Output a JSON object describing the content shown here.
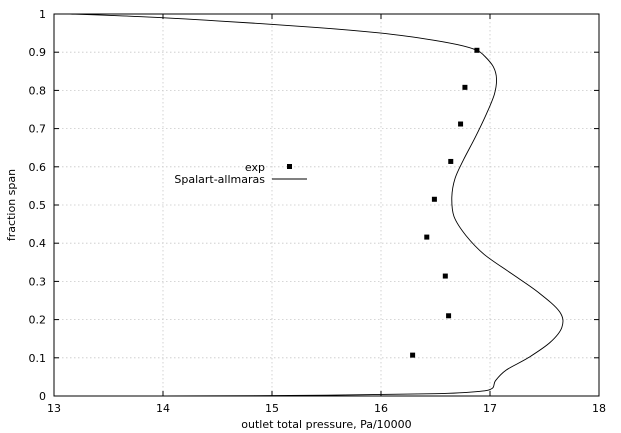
{
  "chart_data": {
    "type": "scatter",
    "xlabel": "outlet total pressure, Pa/10000",
    "ylabel": "fraction span",
    "xlim": [
      13,
      18
    ],
    "ylim": [
      0,
      1
    ],
    "xticks": [
      "13",
      "14",
      "15",
      "16",
      "17",
      "18"
    ],
    "yticks": [
      "0",
      "0.1",
      "0.2",
      "0.3",
      "0.4",
      "0.5",
      "0.6",
      "0.7",
      "0.8",
      "0.9",
      "1"
    ],
    "grid": true,
    "legend_position": "center-left",
    "series": [
      {
        "name": "exp",
        "style": "points",
        "x": [
          16.29,
          16.62,
          16.59,
          16.42,
          16.49,
          16.64,
          16.73,
          16.77,
          16.88
        ],
        "y": [
          0.107,
          0.21,
          0.314,
          0.416,
          0.515,
          0.614,
          0.712,
          0.808,
          0.905
        ]
      },
      {
        "name": "Spalart-allmaras",
        "style": "line",
        "x": [
          14.0,
          15.5,
          16.5,
          16.9,
          17.02,
          17.05,
          17.15,
          17.35,
          17.55,
          17.66,
          17.64,
          17.45,
          17.2,
          16.95,
          16.78,
          16.67,
          16.65,
          16.68,
          16.76,
          16.87,
          16.97,
          17.04,
          17.06,
          17.03,
          16.95,
          16.88,
          16.7,
          16.4,
          16.0,
          15.4,
          14.5,
          13.8,
          13.15
        ],
        "y": [
          0.0,
          0.002,
          0.006,
          0.012,
          0.02,
          0.04,
          0.068,
          0.1,
          0.14,
          0.18,
          0.22,
          0.27,
          0.32,
          0.37,
          0.42,
          0.47,
          0.52,
          0.57,
          0.62,
          0.68,
          0.74,
          0.79,
          0.83,
          0.862,
          0.89,
          0.905,
          0.92,
          0.935,
          0.95,
          0.965,
          0.982,
          0.993,
          1.0
        ]
      }
    ]
  }
}
